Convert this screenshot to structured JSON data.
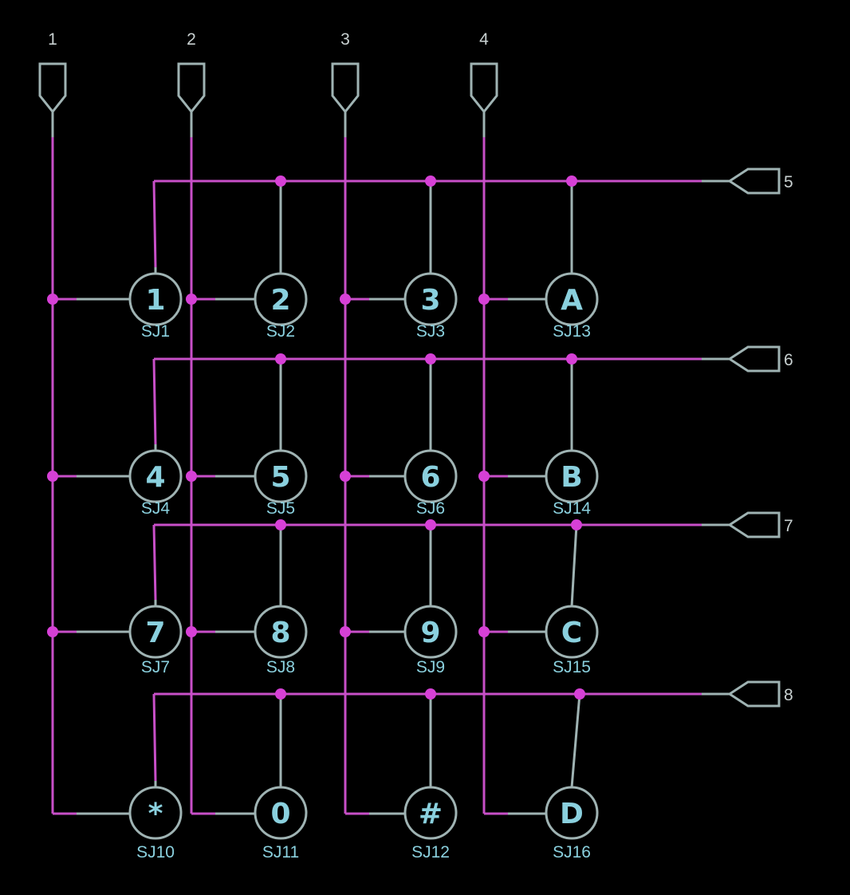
{
  "colors": {
    "background": "#000000",
    "wire": "#c84fc8",
    "junction": "#d640d6",
    "outline": "#9fb3b3",
    "key_text": "#8ad0de"
  },
  "column_ports": [
    {
      "label": "1"
    },
    {
      "label": "2"
    },
    {
      "label": "3"
    },
    {
      "label": "4"
    }
  ],
  "row_ports": [
    {
      "label": "5"
    },
    {
      "label": "6"
    },
    {
      "label": "7"
    },
    {
      "label": "8"
    }
  ],
  "keys": [
    [
      {
        "glyph": "1",
        "ref": "SJ1"
      },
      {
        "glyph": "2",
        "ref": "SJ2"
      },
      {
        "glyph": "3",
        "ref": "SJ3"
      },
      {
        "glyph": "A",
        "ref": "SJ13"
      }
    ],
    [
      {
        "glyph": "4",
        "ref": "SJ4"
      },
      {
        "glyph": "5",
        "ref": "SJ5"
      },
      {
        "glyph": "6",
        "ref": "SJ6"
      },
      {
        "glyph": "B",
        "ref": "SJ14"
      }
    ],
    [
      {
        "glyph": "7",
        "ref": "SJ7"
      },
      {
        "glyph": "8",
        "ref": "SJ8"
      },
      {
        "glyph": "9",
        "ref": "SJ9"
      },
      {
        "glyph": "C",
        "ref": "SJ15"
      }
    ],
    [
      {
        "glyph": "*",
        "ref": "SJ10"
      },
      {
        "glyph": "0",
        "ref": "SJ11"
      },
      {
        "glyph": "#",
        "ref": "SJ12"
      },
      {
        "glyph": "D",
        "ref": "SJ16"
      }
    ]
  ]
}
